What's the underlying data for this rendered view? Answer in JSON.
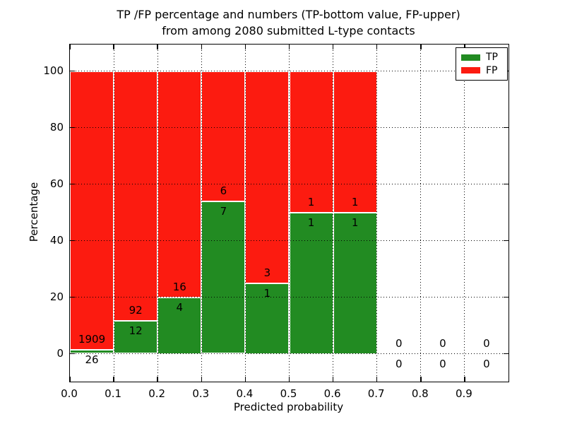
{
  "chart_data": {
    "type": "bar",
    "stacked": true,
    "title_line1": "TP /FP percentage and numbers (TP-bottom value, FP-upper)",
    "title_line2": "from among 2080 submitted L-type contacts",
    "xlabel": "Predicted probability",
    "ylabel": "Percentage",
    "xlim": [
      0.0,
      1.0
    ],
    "ylim": [
      -10,
      110
    ],
    "x_tick_values": [
      0.0,
      0.1,
      0.2,
      0.3,
      0.4,
      0.5,
      0.6,
      0.7,
      0.8,
      0.9
    ],
    "x_tick_labels": [
      "0.0",
      "0.1",
      "0.2",
      "0.3",
      "0.4",
      "0.5",
      "0.6",
      "0.7",
      "0.8",
      "0.9"
    ],
    "y_tick_values": [
      0,
      20,
      40,
      60,
      80,
      100
    ],
    "y_tick_labels": [
      "0",
      "20",
      "40",
      "60",
      "80",
      "100"
    ],
    "grid": true,
    "grid_style": "dotted",
    "bin_width": 0.1,
    "categories": [
      "0.0-0.1",
      "0.1-0.2",
      "0.2-0.3",
      "0.3-0.4",
      "0.4-0.5",
      "0.5-0.6",
      "0.6-0.7",
      "0.7-0.8",
      "0.8-0.9",
      "0.9-1.0"
    ],
    "series": [
      {
        "name": "TP",
        "color": "#228b22",
        "counts": [
          26,
          12,
          4,
          7,
          1,
          1,
          1,
          0,
          0,
          0
        ],
        "percentages": [
          1.34,
          11.54,
          20.0,
          53.85,
          25.0,
          50.0,
          50.0,
          0,
          0,
          0
        ]
      },
      {
        "name": "FP",
        "color": "#fc1b10",
        "counts": [
          1909,
          92,
          16,
          6,
          3,
          1,
          1,
          0,
          0,
          0
        ],
        "percentages": [
          98.66,
          88.46,
          80.0,
          46.15,
          75.0,
          50.0,
          50.0,
          0,
          0,
          0
        ]
      }
    ],
    "bar_edge_color": "#ffffff",
    "legend": {
      "position": "upper right",
      "entries": [
        {
          "label": "TP",
          "color": "#228b22"
        },
        {
          "label": "FP",
          "color": "#fc1b10"
        }
      ]
    }
  }
}
